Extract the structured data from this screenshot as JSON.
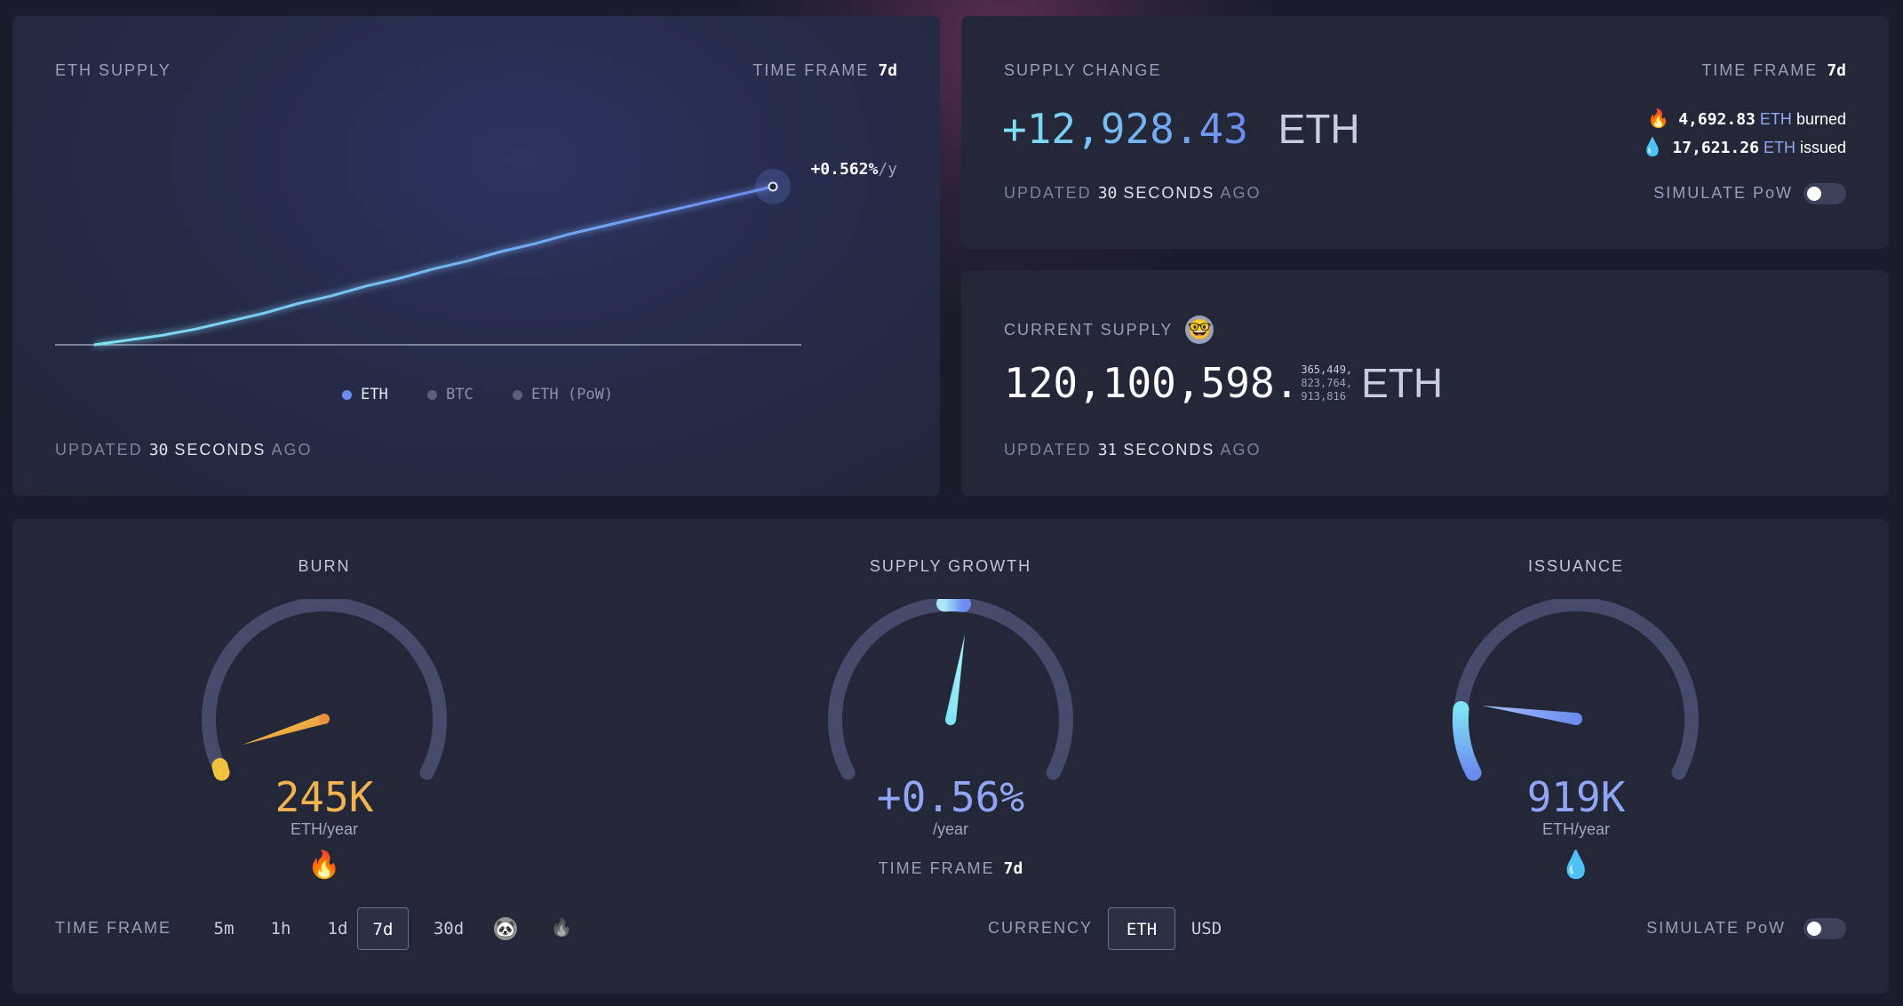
{
  "eth_supply_card": {
    "title": "ETH SUPPLY",
    "time_frame_label": "TIME FRAME",
    "time_frame_value": "7d",
    "rate_value": "+0.562%",
    "rate_unit": "/y",
    "legend": [
      "ETH",
      "BTC",
      "ETH (PoW)"
    ],
    "updated_prefix": "UPDATED",
    "updated_number": "30",
    "updated_unit": "SECONDS",
    "updated_suffix": "AGO"
  },
  "chart_data": {
    "type": "line",
    "title": "ETH SUPPLY",
    "series": [
      {
        "name": "ETH",
        "values": [
          0,
          0.03,
          0.06,
          0.1,
          0.15,
          0.2,
          0.26,
          0.31,
          0.37,
          0.42,
          0.48,
          0.53,
          0.59,
          0.64,
          0.7,
          0.75,
          0.8,
          0.85,
          0.9,
          0.95,
          1.0
        ]
      }
    ],
    "end_label": "+0.562%/y",
    "grid": false,
    "legend_placement": "bottom-center"
  },
  "supply_change_card": {
    "title": "SUPPLY CHANGE",
    "time_frame_label": "TIME FRAME",
    "time_frame_value": "7d",
    "value": "+12,928.43",
    "unit": "ETH",
    "burned_value": "4,692.83",
    "burned_unit": "ETH",
    "burned_label": "burned",
    "issued_value": "17,621.26",
    "issued_unit": "ETH",
    "issued_label": "issued",
    "simulate_label": "SIMULATE PoW",
    "updated_prefix": "UPDATED",
    "updated_number": "30",
    "updated_unit": "SECONDS",
    "updated_suffix": "AGO"
  },
  "current_supply_card": {
    "title": "CURRENT SUPPLY",
    "value_main": "120,100,598.",
    "precision_line1": "365,449,",
    "precision_line2": "823,764,",
    "precision_line3": "913,816",
    "unit": "ETH",
    "updated_prefix": "UPDATED",
    "updated_number": "31",
    "updated_unit": "SECONDS",
    "updated_suffix": "AGO"
  },
  "gauges": {
    "burn": {
      "title": "BURN",
      "value": "245K",
      "unit": "ETH/year",
      "color": "#f0b34f",
      "emoji": "🔥"
    },
    "growth": {
      "title": "SUPPLY GROWTH",
      "value": "+0.56%",
      "unit": "/year",
      "color": "#8fa6f5",
      "tf_label": "TIME FRAME",
      "tf_value": "7d"
    },
    "issuance": {
      "title": "ISSUANCE",
      "value": "919K",
      "unit": "ETH/year",
      "color": "#8fa6f5",
      "emoji": "💧"
    }
  },
  "controls": {
    "time_frame_label": "TIME FRAME",
    "time_frames": [
      "5m",
      "1h",
      "1d",
      "7d",
      "30d"
    ],
    "active_time_frame": "7d",
    "currency_label": "CURRENCY",
    "currency_eth": "ETH",
    "currency_usd": "USD",
    "simulate_label": "SIMULATE PoW"
  },
  "colors": {
    "accent_cyan": "#7fe3f5",
    "accent_blue": "#6c8cf0",
    "burn_orange": "#f0a24a",
    "card_bg": "#232738"
  }
}
